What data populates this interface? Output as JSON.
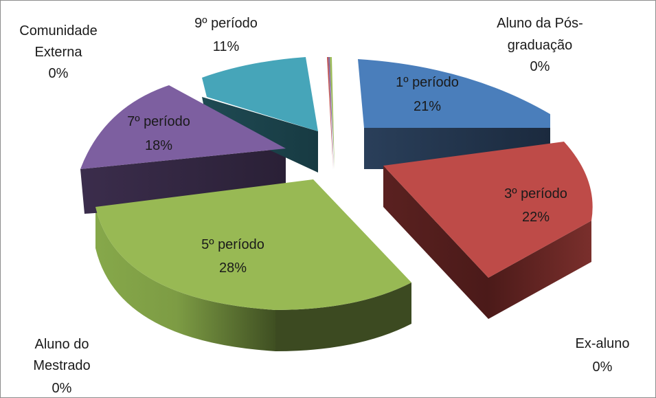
{
  "chart_data": {
    "type": "pie",
    "style": "3d-exploded",
    "title": "",
    "legend": "none",
    "slices": [
      {
        "name": "1º período",
        "value": 21,
        "label": "21%",
        "color": "#4A7EBB"
      },
      {
        "name": "3º período",
        "value": 22,
        "label": "22%",
        "color": "#BE4B48"
      },
      {
        "name": "Ex-aluno",
        "value": 0,
        "label": "0%",
        "color": "#8064A2"
      },
      {
        "name": "5º período",
        "value": 28,
        "label": "28%",
        "color": "#98B954"
      },
      {
        "name": "Aluno do Mestrado",
        "value": 0,
        "label": "0%",
        "color": "#F79646"
      },
      {
        "name": "7º período",
        "value": 18,
        "label": "18%",
        "color": "#7D5FA0"
      },
      {
        "name": "9º período",
        "value": 11,
        "label": "11%",
        "color": "#46A5B9"
      },
      {
        "name": "Comunidade Externa",
        "value": 0,
        "label": "0%",
        "color": "#C0504D"
      },
      {
        "name": "Aluno da Pós-graduação",
        "value": 0,
        "label": "0%",
        "color": "#9BBB59"
      }
    ],
    "outer_labels": {
      "comunidade_externa": {
        "line1": "Comunidade",
        "line2": "Externa",
        "pct": "0%"
      },
      "nono_periodo": {
        "line1": "9º período",
        "pct": "11%"
      },
      "aluno_pos": {
        "line1": "Aluno da Pós-",
        "line2": "graduação",
        "pct": "0%"
      },
      "ex_aluno": {
        "line1": "Ex-aluno",
        "pct": "0%"
      },
      "aluno_mestrado": {
        "line1": "Aluno do",
        "line2": "Mestrado",
        "pct": "0%"
      }
    },
    "inner_labels": {
      "primeiro": {
        "line1": "1º período",
        "pct": "21%"
      },
      "terceiro": {
        "line1": "3º período",
        "pct": "22%"
      },
      "quinto": {
        "line1": "5º período",
        "pct": "28%"
      },
      "setimo": {
        "line1": "7º período",
        "pct": "18%"
      }
    }
  }
}
